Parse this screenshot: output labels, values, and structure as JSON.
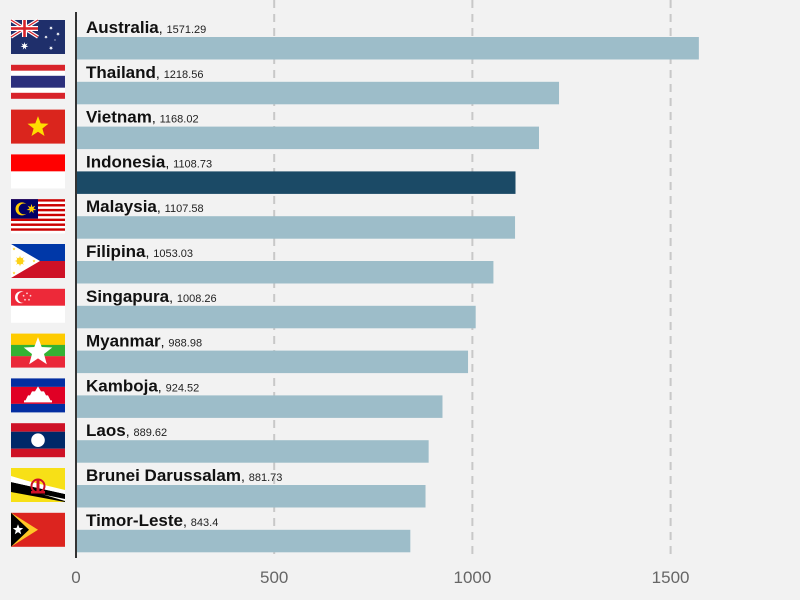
{
  "chart_data": {
    "type": "bar",
    "orientation": "horizontal",
    "title": "",
    "xlabel": "",
    "ylabel": "",
    "xlim": [
      0,
      1800
    ],
    "xticks": [
      0,
      500,
      1000,
      1500
    ],
    "grid": "vertical dashed",
    "highlight": "Indonesia",
    "colors": {
      "bar": "#9dbdc9",
      "highlight": "#1b4a66",
      "axis": "#333333",
      "grid": "#c8c8c8"
    },
    "categories": [
      "Australia",
      "Thailand",
      "Vietnam",
      "Indonesia",
      "Malaysia",
      "Filipina",
      "Singapura",
      "Myanmar",
      "Kamboja",
      "Laos",
      "Brunei Darussalam",
      "Timor-Leste"
    ],
    "values": [
      1571.29,
      1218.56,
      1168.02,
      1108.73,
      1107.58,
      1053.03,
      1008.26,
      988.98,
      924.52,
      889.62,
      881.73,
      843.4
    ],
    "value_labels": [
      "1571.29",
      "1218.56",
      "1168.02",
      "1108.73",
      "1107.58",
      "1053.03",
      "1008.26",
      "988.98",
      "924.52",
      "889.62",
      "881.73",
      "843.4"
    ],
    "flags": [
      "australia-flag",
      "thailand-flag",
      "vietnam-flag",
      "indonesia-flag",
      "malaysia-flag",
      "philippines-flag",
      "singapore-flag",
      "myanmar-flag",
      "cambodia-flag",
      "laos-flag",
      "brunei-flag",
      "timor-leste-flag"
    ]
  }
}
